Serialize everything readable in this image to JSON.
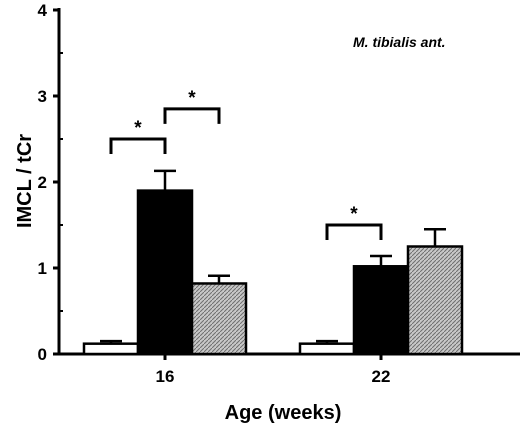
{
  "chart_data": {
    "type": "bar",
    "xlabel": "Age (weeks)",
    "ylabel": "IMCL / tCr",
    "annotation": "M. tibialis ant.",
    "categories": [
      "16",
      "22"
    ],
    "ylim": [
      0,
      4
    ],
    "yticks": [
      0,
      1,
      2,
      3,
      4
    ],
    "grid": false,
    "legend": "none",
    "error_bars": true,
    "series": [
      {
        "values": [
          0.12,
          0.12
        ],
        "errors": [
          0.03,
          0.03
        ],
        "fill": "white"
      },
      {
        "values": [
          1.9,
          1.02
        ],
        "errors": [
          0.23,
          0.12
        ],
        "fill": "black"
      },
      {
        "values": [
          0.82,
          1.25
        ],
        "errors": [
          0.09,
          0.2
        ],
        "fill": "hatched-gray"
      }
    ],
    "significance": [
      {
        "category": "16",
        "between": [
          0,
          1
        ],
        "y": 2.5,
        "label": "*"
      },
      {
        "category": "16",
        "between": [
          1,
          2
        ],
        "y": 2.85,
        "label": "*"
      },
      {
        "category": "22",
        "between": [
          0,
          1
        ],
        "y": 1.5,
        "label": "*"
      }
    ]
  }
}
